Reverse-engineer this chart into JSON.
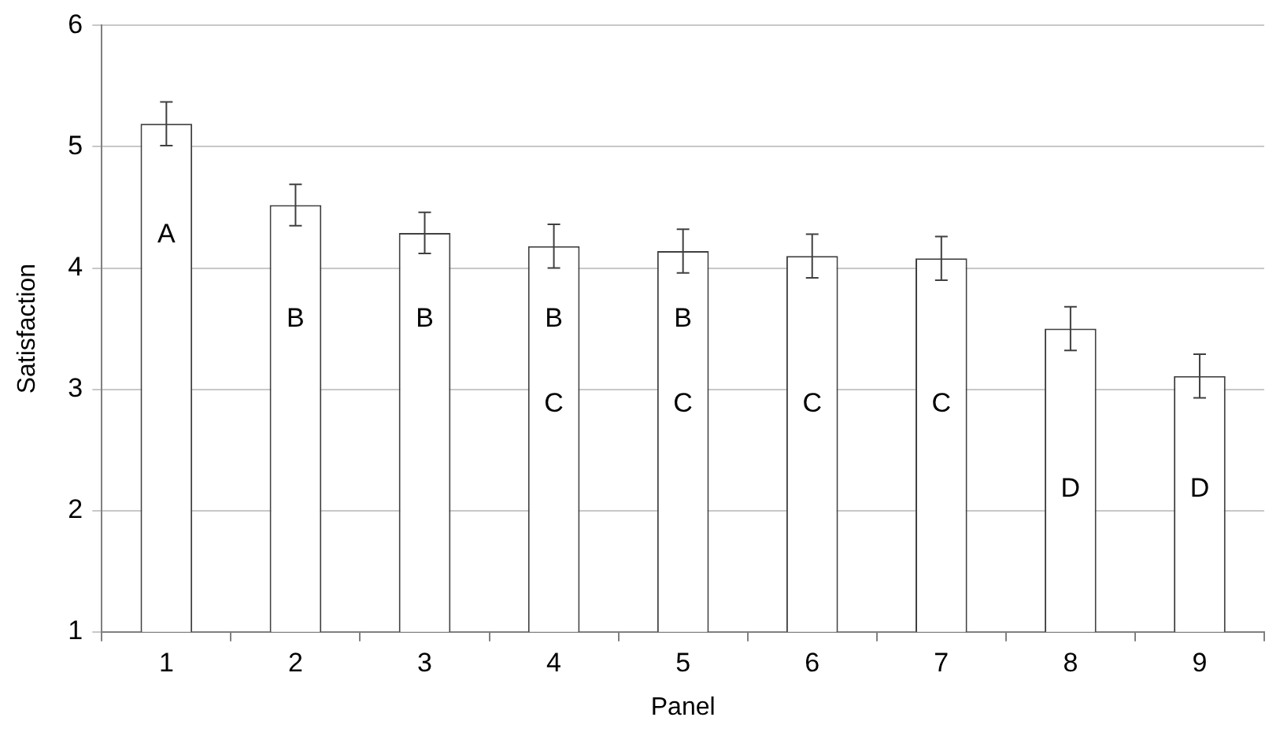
{
  "chart_data": {
    "type": "bar",
    "xlabel": "Panel",
    "ylabel": "Satisfaction",
    "categories": [
      "1",
      "2",
      "3",
      "4",
      "5",
      "6",
      "7",
      "8",
      "9"
    ],
    "series": [
      {
        "color": "#ffffff",
        "values": [
          5.19,
          4.52,
          4.29,
          4.18,
          4.14,
          4.1,
          4.08,
          3.5,
          3.11
        ],
        "errors": [
          0.18,
          0.17,
          0.17,
          0.18,
          0.18,
          0.18,
          0.18,
          0.18,
          0.18
        ],
        "value_labels": [
          "A",
          "B",
          "B",
          "B C",
          "B C",
          "C",
          "C",
          "D",
          "D"
        ]
      }
    ],
    "ylim": [
      1,
      6
    ],
    "yticks": [
      1,
      2,
      3,
      4,
      5,
      6
    ],
    "grid": "y",
    "legend": false
  }
}
